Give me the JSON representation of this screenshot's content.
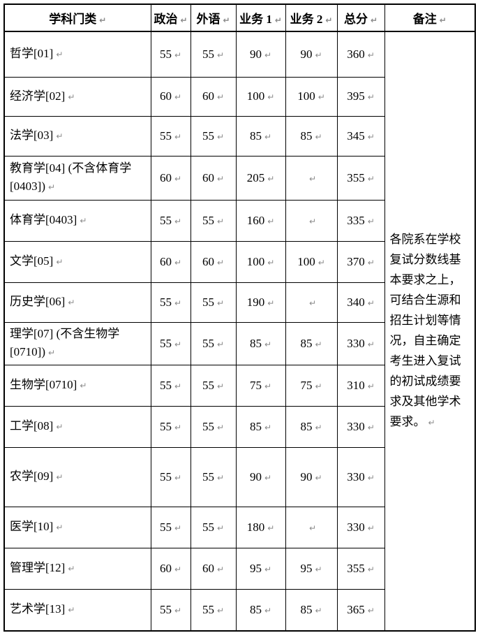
{
  "page": {
    "background_color": "#ffffff",
    "border_color": "#000000",
    "mark_color": "#8a8a8a"
  },
  "icons": {
    "return_mark": "↵"
  },
  "table": {
    "headers": [
      "学科门类",
      "政治",
      "外语",
      "业务 1",
      "业务 2",
      "总分",
      "备注"
    ],
    "rows": [
      {
        "category": "哲学[01]",
        "scores": [
          "55",
          "55",
          "90",
          "90",
          "360"
        ]
      },
      {
        "category": "经济学[02]",
        "scores": [
          "60",
          "60",
          "100",
          "100",
          "395"
        ]
      },
      {
        "category": "法学[03]",
        "scores": [
          "55",
          "55",
          "85",
          "85",
          "345"
        ]
      },
      {
        "category": "教育学[04] (不含体育学[0403])",
        "scores": [
          "60",
          "60",
          "205",
          "",
          "355"
        ]
      },
      {
        "category": "体育学[0403]",
        "scores": [
          "55",
          "55",
          "160",
          "",
          "335"
        ]
      },
      {
        "category": "文学[05]",
        "scores": [
          "60",
          "60",
          "100",
          "100",
          "370"
        ]
      },
      {
        "category": "历史学[06]",
        "scores": [
          "55",
          "55",
          "190",
          "",
          "340"
        ]
      },
      {
        "category": "理学[07] (不含生物学[0710])",
        "scores": [
          "55",
          "55",
          "85",
          "85",
          "330"
        ]
      },
      {
        "category": "生物学[0710]",
        "scores": [
          "55",
          "55",
          "75",
          "75",
          "310"
        ]
      },
      {
        "category": "工学[08]",
        "scores": [
          "55",
          "55",
          "85",
          "85",
          "330"
        ]
      },
      {
        "category": "农学[09]",
        "scores": [
          "55",
          "55",
          "90",
          "90",
          "330"
        ]
      },
      {
        "category": "医学[10]",
        "scores": [
          "55",
          "55",
          "180",
          "",
          "330"
        ]
      },
      {
        "category": "管理学[12]",
        "scores": [
          "60",
          "60",
          "95",
          "95",
          "355"
        ]
      },
      {
        "category": "艺术学[13]",
        "scores": [
          "55",
          "55",
          "85",
          "85",
          "365"
        ]
      }
    ],
    "remark": "各院系在学校\n复试分数线基\n本要求之上，\n可结合生源和\n招生计划等情\n况，自主确定\n考生进入复试\n的初试成绩要\n求及其他学术\n要求。"
  }
}
